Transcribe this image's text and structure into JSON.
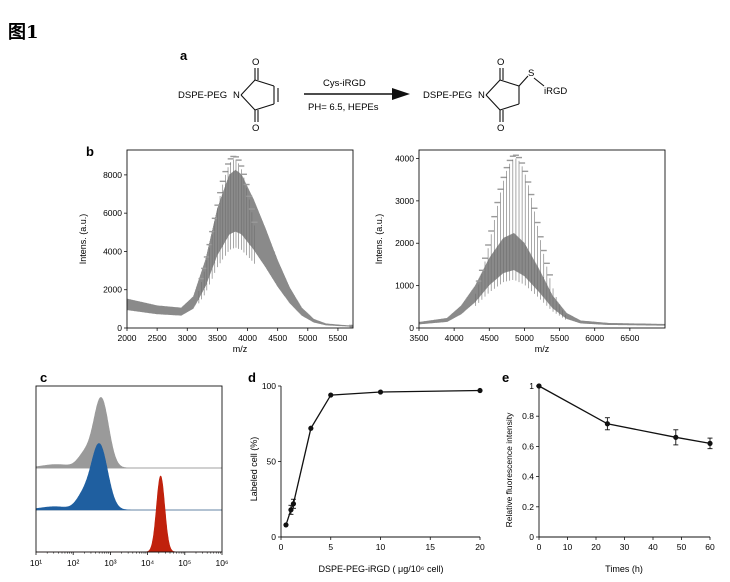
{
  "figure_title": "图1",
  "panel_a": {
    "label": "a",
    "reactant": "DSPE-PEG",
    "atom_n": "N",
    "atom_o": "O",
    "reagent_above": "Cys-iRGD",
    "reagent_below": "PH= 6.5, HEPEs",
    "product_prefix": "DSPE-PEG",
    "atom_s": "S",
    "product_suffix": "iRGD"
  },
  "panel_b": {
    "label": "b"
  },
  "panel_c": {
    "label": "c"
  },
  "panel_d": {
    "label": "d"
  },
  "panel_e": {
    "label": "e"
  },
  "colors": {
    "spectrum": "#8a8a8a",
    "histogram_gray": "#9a9a9a",
    "histogram_blue": "#1f5fa0",
    "histogram_red": "#c0210c",
    "line": "#111111"
  },
  "chart_data": [
    {
      "id": "b-left",
      "type": "line",
      "title": "",
      "xlabel": "m/z",
      "ylabel": "Intens. (a.u.)",
      "xlim": [
        2000,
        5750
      ],
      "ylim": [
        0,
        9300
      ],
      "xticks": [
        2000,
        2500,
        3000,
        3500,
        4000,
        4500,
        5000,
        5500
      ],
      "yticks": [
        0,
        2000,
        4000,
        6000,
        8000
      ],
      "envelope": {
        "x": [
          2000,
          2500,
          2900,
          3100,
          3300,
          3500,
          3700,
          3800,
          3900,
          4100,
          4300,
          4500,
          4700,
          4900,
          5100,
          5300,
          5500,
          5750
        ],
        "y": [
          1300,
          1000,
          900,
          1400,
          3000,
          5300,
          6800,
          7000,
          6800,
          5700,
          4400,
          3000,
          1800,
          900,
          400,
          200,
          150,
          100
        ]
      },
      "peak_max": 8800,
      "peak_center": 3780
    },
    {
      "id": "b-right",
      "type": "line",
      "title": "",
      "xlabel": "m/z",
      "ylabel": "Intens. (a.u.)",
      "xlim": [
        3500,
        7000
      ],
      "ylim": [
        0,
        4200
      ],
      "xticks": [
        3500,
        4000,
        4500,
        5000,
        5500,
        6000,
        6500
      ],
      "yticks": [
        0,
        1000,
        2000,
        3000,
        4000
      ],
      "envelope": {
        "x": [
          3500,
          3900,
          4100,
          4300,
          4500,
          4700,
          4850,
          5000,
          5200,
          5400,
          5600,
          5800,
          6200,
          7000
        ],
        "y": [
          120,
          200,
          450,
          850,
          1400,
          1800,
          1900,
          1700,
          1200,
          650,
          300,
          150,
          100,
          80
        ]
      },
      "peak_max": 4000,
      "peak_center": 4870
    },
    {
      "id": "c",
      "type": "area",
      "title": "",
      "xlabel": "",
      "ylabel": "",
      "xscale": "log",
      "xlim": [
        10,
        1000000
      ],
      "xticks": [
        "10¹",
        "10²",
        "10³",
        "10⁴",
        "10⁵",
        "10⁶"
      ],
      "series": [
        {
          "color": "#9a9a9a",
          "center_log": 2.75,
          "peak_share": 1.0
        },
        {
          "color": "#1f5fa0",
          "center_log": 2.7,
          "peak_share": 1.0
        },
        {
          "color": "#c0210c",
          "center_log": 4.35,
          "peak_share": 1.0
        }
      ]
    },
    {
      "id": "d",
      "type": "line",
      "title": "",
      "xlabel": "DSPE-PEG-iRGD ( μg/10⁶ cell)",
      "ylabel": "Labeled cell (%)",
      "xlim": [
        0,
        20
      ],
      "ylim": [
        0,
        100
      ],
      "xticks": [
        0,
        5,
        10,
        15,
        20
      ],
      "yticks": [
        0,
        50,
        100
      ],
      "x": [
        0.5,
        1,
        1.25,
        3,
        5,
        10,
        20
      ],
      "y": [
        8,
        18,
        22,
        72,
        94,
        96,
        97
      ],
      "err": [
        0,
        3,
        3,
        0,
        0,
        0,
        0
      ]
    },
    {
      "id": "e",
      "type": "line",
      "title": "",
      "xlabel": "Times (h)",
      "ylabel": "Relative fluorescence intensity",
      "xlim": [
        0,
        60
      ],
      "ylim": [
        0,
        1
      ],
      "xticks": [
        0,
        10,
        20,
        30,
        40,
        50,
        60
      ],
      "yticks": [
        0,
        0.2,
        0.4,
        0.6,
        0.8,
        1
      ],
      "x": [
        0,
        24,
        48,
        60
      ],
      "y": [
        1.0,
        0.75,
        0.66,
        0.62
      ],
      "err": [
        0,
        0.04,
        0.05,
        0.035
      ]
    }
  ]
}
